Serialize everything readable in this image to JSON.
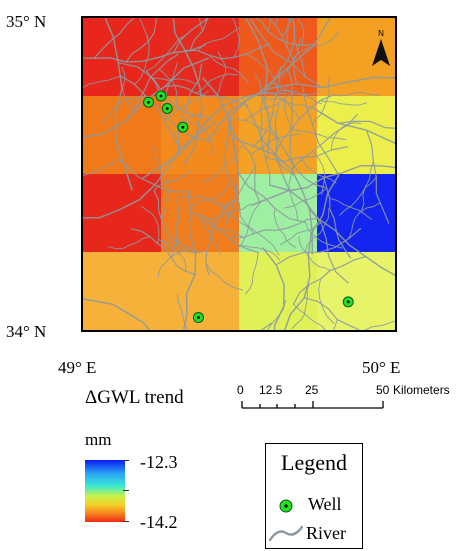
{
  "coordinates": {
    "lat_top": "35° N",
    "lat_bottom": "34° N",
    "lon_left": "49° E",
    "lon_right": "50° E"
  },
  "trend_title": "ΔGWL trend",
  "colorbar": {
    "unit": "mm",
    "max_label": "-12.3",
    "min_label": "-14.2",
    "colors": [
      "#0a1bf0",
      "#2aa5f5",
      "#3ce9d2",
      "#c7f24a",
      "#f3d22a",
      "#f7831f",
      "#ef2b12"
    ]
  },
  "scale_bar": {
    "labels": [
      "0",
      "12.5",
      "25",
      "50"
    ],
    "unit": "Kilometers"
  },
  "legend": {
    "title": "Legend",
    "well_label": "Well",
    "river_label": "River",
    "well_color": "#22e022",
    "river_color": "#8c9aa0"
  },
  "north_arrow": {
    "label": "N",
    "icon": "north-arrow-icon"
  },
  "grid_colors": [
    [
      "#e8261c",
      "#e52b20",
      "#ef5a1c",
      "#f4a023"
    ],
    [
      "#f07a1a",
      "#f28a1e",
      "#f4a225",
      "#ecef4b"
    ],
    [
      "#e8271c",
      "#f07d1d",
      "#9fefa2",
      "#1325ee"
    ],
    [
      "#f5b13a",
      "#f5b13a",
      "#e0f158",
      "#e7f46a"
    ]
  ],
  "wells": [
    {
      "lon": 49.25,
      "lat": 34.75
    },
    {
      "lon": 49.21,
      "lat": 34.73
    },
    {
      "lon": 49.27,
      "lat": 34.71
    },
    {
      "lon": 49.32,
      "lat": 34.65
    },
    {
      "lon": 49.37,
      "lat": 34.04
    },
    {
      "lon": 49.85,
      "lat": 34.09
    }
  ]
}
